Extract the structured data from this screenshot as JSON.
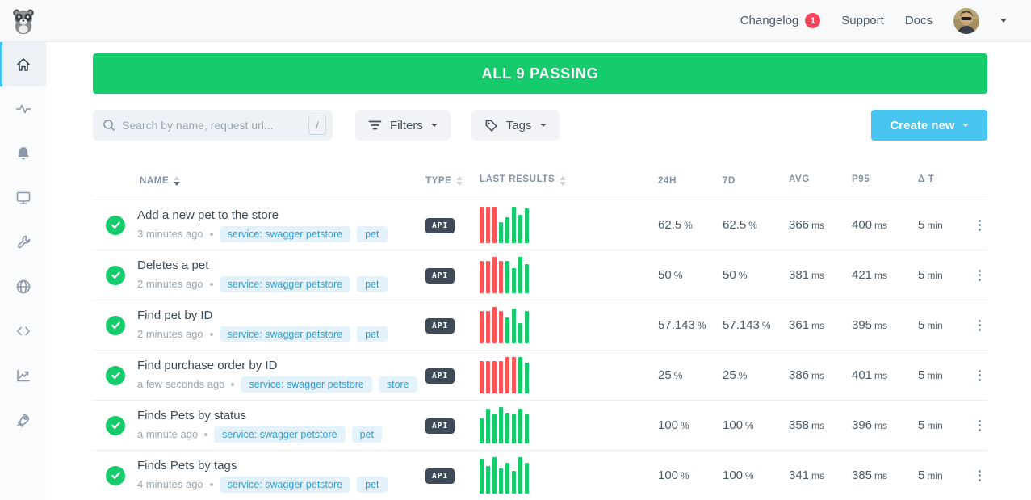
{
  "topbar": {
    "nav": [
      {
        "label": "Changelog",
        "badge": "1"
      },
      {
        "label": "Support"
      },
      {
        "label": "Docs"
      }
    ]
  },
  "sidebar": {
    "items": [
      {
        "icon": "home-icon",
        "active": true
      },
      {
        "icon": "activity-icon",
        "active": false
      },
      {
        "icon": "bell-icon",
        "active": false
      },
      {
        "icon": "monitor-icon",
        "active": false
      },
      {
        "icon": "wrench-icon",
        "active": false
      },
      {
        "icon": "globe-icon",
        "active": false
      },
      {
        "icon": "code-icon",
        "active": false
      },
      {
        "icon": "chart-icon",
        "active": false
      },
      {
        "icon": "rocket-icon",
        "active": false
      }
    ]
  },
  "banner": {
    "text": "ALL 9 PASSING"
  },
  "toolbar": {
    "search_placeholder": "Search by name, request url...",
    "search_shortcut": "/",
    "filters_label": "Filters",
    "tags_label": "Tags",
    "create_label": "Create new"
  },
  "colors": {
    "green": "#16cb6b",
    "red": "#fc5656",
    "blue": "#49c5f2",
    "badge_red": "#f5455c",
    "tag_text": "#2d9fd8",
    "tag_bg": "#e4f3fb"
  },
  "table": {
    "columns": {
      "name": "NAME",
      "type": "TYPE",
      "last_results": "LAST RESULTS",
      "h24": "24H",
      "d7": "7D",
      "avg": "AVG",
      "p95": "P95",
      "dt": "Δ T"
    },
    "rows": [
      {
        "name": "Add a new pet to the store",
        "time": "3 minutes ago",
        "tags": [
          "service: swagger petstore",
          "pet"
        ],
        "type": "API",
        "bars": [
          "r:100",
          "r:100",
          "r:100",
          "g:58",
          "g:72",
          "g:100",
          "g:78",
          "g:95"
        ],
        "metrics": {
          "h24": [
            "62.5",
            "%"
          ],
          "d7": [
            "62.5",
            "%"
          ],
          "avg": [
            "366",
            "ms"
          ],
          "p95": [
            "400",
            "ms"
          ],
          "dt": [
            "5",
            "min"
          ]
        }
      },
      {
        "name": "Deletes a pet",
        "time": "2 minutes ago",
        "tags": [
          "service: swagger petstore",
          "pet"
        ],
        "type": "API",
        "bars": [
          "r:88",
          "r:88",
          "r:100",
          "r:88",
          "g:88",
          "g:70",
          "g:100",
          "g:80"
        ],
        "metrics": {
          "h24": [
            "50",
            "%"
          ],
          "d7": [
            "50",
            "%"
          ],
          "avg": [
            "381",
            "ms"
          ],
          "p95": [
            "421",
            "ms"
          ],
          "dt": [
            "5",
            "min"
          ]
        }
      },
      {
        "name": "Find pet by ID",
        "time": "2 minutes ago",
        "tags": [
          "service: swagger petstore",
          "pet"
        ],
        "type": "API",
        "bars": [
          "r:88",
          "r:88",
          "r:100",
          "r:88",
          "g:72",
          "g:95",
          "g:55",
          "g:90"
        ],
        "metrics": {
          "h24": [
            "57.143",
            "%"
          ],
          "d7": [
            "57.143",
            "%"
          ],
          "avg": [
            "361",
            "ms"
          ],
          "p95": [
            "395",
            "ms"
          ],
          "dt": [
            "5",
            "min"
          ]
        }
      },
      {
        "name": "Find purchase order by ID",
        "time": "a few seconds ago",
        "tags": [
          "service: swagger petstore",
          "store"
        ],
        "type": "API",
        "bars": [
          "r:88",
          "r:88",
          "r:88",
          "r:88",
          "r:100",
          "r:100",
          "g:100",
          "g:85"
        ],
        "metrics": {
          "h24": [
            "25",
            "%"
          ],
          "d7": [
            "25",
            "%"
          ],
          "avg": [
            "386",
            "ms"
          ],
          "p95": [
            "401",
            "ms"
          ],
          "dt": [
            "5",
            "min"
          ]
        }
      },
      {
        "name": "Finds Pets by status",
        "time": "a minute ago",
        "tags": [
          "service: swagger petstore",
          "pet"
        ],
        "type": "API",
        "bars": [
          "g:68",
          "g:95",
          "g:82",
          "g:100",
          "g:85",
          "g:82",
          "g:95",
          "g:82"
        ],
        "metrics": {
          "h24": [
            "100",
            "%"
          ],
          "d7": [
            "100",
            "%"
          ],
          "avg": [
            "358",
            "ms"
          ],
          "p95": [
            "396",
            "ms"
          ],
          "dt": [
            "5",
            "min"
          ]
        }
      },
      {
        "name": "Finds Pets by tags",
        "time": "4 minutes ago",
        "tags": [
          "service: swagger petstore",
          "pet"
        ],
        "type": "API",
        "bars": [
          "g:95",
          "g:75",
          "g:100",
          "g:70",
          "g:85",
          "g:62",
          "g:100",
          "g:85"
        ],
        "metrics": {
          "h24": [
            "100",
            "%"
          ],
          "d7": [
            "100",
            "%"
          ],
          "avg": [
            "341",
            "ms"
          ],
          "p95": [
            "385",
            "ms"
          ],
          "dt": [
            "5",
            "min"
          ]
        }
      }
    ]
  }
}
